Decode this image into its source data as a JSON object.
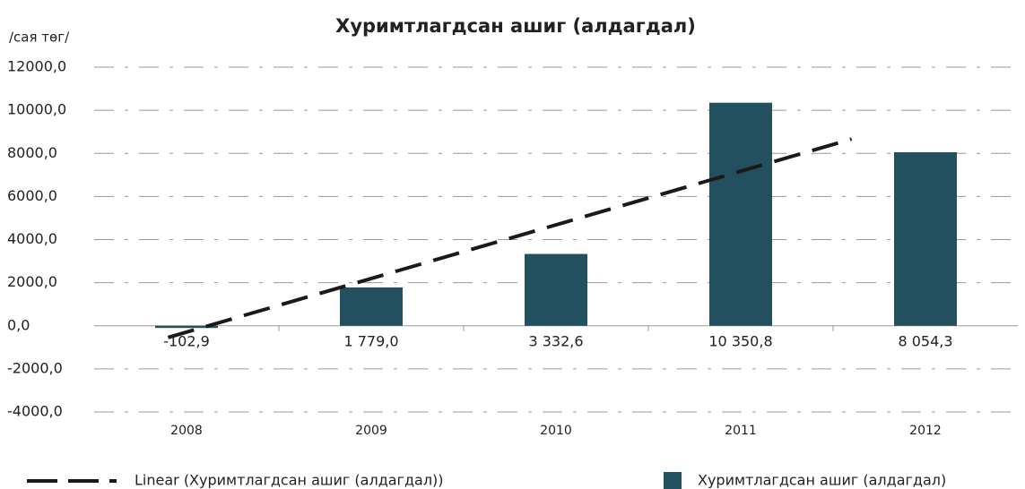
{
  "chart_data": {
    "type": "bar",
    "title": "Хуримтлагдсан ашиг (алдагдал)",
    "y_axis_label": "/сая төг/",
    "categories": [
      "2008",
      "2009",
      "2010",
      "2011",
      "2012"
    ],
    "series": [
      {
        "name": "Хуримтлагдсан ашиг (алдагдал)",
        "color": "#23505f",
        "values": [
          -102.9,
          1779.0,
          3332.6,
          10350.8,
          8054.3
        ],
        "value_labels": [
          "-102,9",
          "1 779,0",
          "3 332,6",
          "10 350,8",
          "8 054,3"
        ]
      }
    ],
    "trendline": {
      "name": "Linear (Хуримтлагдсан ашиг (алдагдал))",
      "kind": "linear",
      "color": "#1a1a1a"
    },
    "ylim": [
      -4000,
      12000
    ],
    "yticks": [
      {
        "value": -4000,
        "label": "-4000,0"
      },
      {
        "value": -2000,
        "label": "-2000,0"
      },
      {
        "value": 0,
        "label": "0,0"
      },
      {
        "value": 2000,
        "label": "2000,0"
      },
      {
        "value": 4000,
        "label": "4000,0"
      },
      {
        "value": 6000,
        "label": "6000,0"
      },
      {
        "value": 8000,
        "label": "8000,0"
      },
      {
        "value": 10000,
        "label": "10000,0"
      },
      {
        "value": 12000,
        "label": "12000,0"
      }
    ],
    "grid": true,
    "legend": "bottom"
  }
}
